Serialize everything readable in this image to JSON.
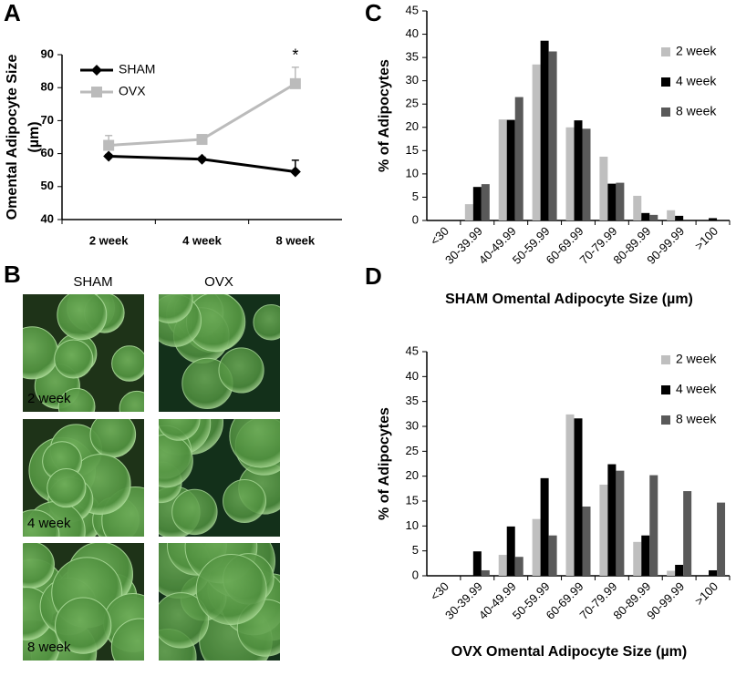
{
  "panels": [
    "A",
    "B",
    "C",
    "D"
  ],
  "micrographs": {
    "columns": [
      "SHAM",
      "OVX"
    ],
    "rows": [
      "2 week",
      "4 week",
      "8 week"
    ]
  },
  "chart_data": [
    {
      "type": "line",
      "ylabel": [
        "Omental Adipocyte Size",
        "(µm)"
      ],
      "categories": [
        "2 week",
        "4 week",
        "8 week"
      ],
      "series": [
        {
          "name": "SHAM",
          "color": "#000000",
          "marker": "diamond",
          "values": [
            59.2,
            58.3,
            54.5
          ],
          "errors": [
            0.5,
            0.6,
            3.5
          ]
        },
        {
          "name": "OVX",
          "color": "#bbbbbb",
          "marker": "square",
          "values": [
            62.5,
            64.3,
            81.2
          ],
          "errors": [
            3.0,
            0.8,
            5.0
          ]
        }
      ],
      "annotation": "*",
      "ylim": [
        40,
        90
      ],
      "yticks": [
        40,
        50,
        60,
        70,
        80,
        90
      ],
      "grid": false,
      "legend": "top-left"
    },
    {
      "type": "bar",
      "xlabel": "SHAM Omental Adipocyte Size (µm)",
      "ylabel": "% of Adipocytes",
      "categories": [
        "<30",
        "30-39.99",
        "40-49.99",
        "50-59.99",
        "60-69.99",
        "70-79.99",
        "80-89.99",
        "90-99.99",
        ">100"
      ],
      "series": [
        {
          "name": "2 week",
          "color": "#bfbfbf",
          "values": [
            0,
            3.5,
            21.7,
            33.5,
            20,
            13.7,
            5.3,
            2.2,
            0
          ]
        },
        {
          "name": "4 week",
          "color": "#000000",
          "values": [
            0,
            7.2,
            21.6,
            38.6,
            21.5,
            7.9,
            1.6,
            1,
            0.5
          ]
        },
        {
          "name": "8 week",
          "color": "#595959",
          "values": [
            0,
            7.8,
            26.5,
            36.3,
            19.7,
            8.1,
            1.2,
            0,
            0
          ]
        }
      ],
      "ylim": [
        0,
        45
      ],
      "yticks": [
        0,
        5,
        10,
        15,
        20,
        25,
        30,
        35,
        40,
        45
      ],
      "grid": false,
      "legend": "top-right"
    },
    {
      "type": "bar",
      "xlabel": "OVX Omental Adipocyte Size (µm)",
      "ylabel": "% of Adipocytes",
      "categories": [
        "<30",
        "30-39.99",
        "40-49.99",
        "50-59.99",
        "60-69.99",
        "70-79.99",
        "80-89.99",
        "90-99.99",
        ">100"
      ],
      "series": [
        {
          "name": "2 week",
          "color": "#bfbfbf",
          "values": [
            0,
            0,
            4.2,
            11.4,
            32.4,
            18.3,
            6.8,
            1,
            0
          ]
        },
        {
          "name": "4 week",
          "color": "#000000",
          "values": [
            0,
            4.9,
            9.9,
            19.6,
            31.6,
            22.4,
            8.1,
            2.2,
            1.1
          ]
        },
        {
          "name": "8 week",
          "color": "#595959",
          "values": [
            0,
            1.1,
            3.8,
            8.1,
            13.9,
            21.1,
            20.2,
            17,
            14.7
          ]
        }
      ],
      "ylim": [
        0,
        45
      ],
      "yticks": [
        0,
        5,
        10,
        15,
        20,
        25,
        30,
        35,
        40,
        45
      ],
      "grid": false,
      "legend": "top-right"
    }
  ]
}
